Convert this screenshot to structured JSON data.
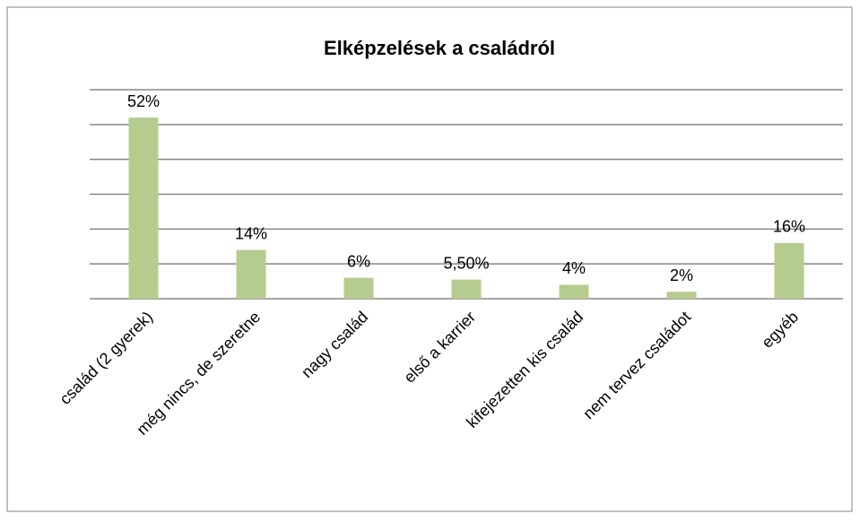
{
  "chart_data": {
    "type": "bar",
    "title": "Elképzelések a családról",
    "categories": [
      "család (2 gyerek)",
      "még nincs, de szeretne",
      "nagy család",
      "első a karrier",
      "kifejezetten kis család",
      "nem tervez családot",
      "egyéb"
    ],
    "values": [
      52,
      14,
      6,
      5.5,
      4,
      2,
      16
    ],
    "value_labels": [
      "52%",
      "14%",
      "6%",
      "5,50%",
      "4%",
      "2%",
      "16%"
    ],
    "color": "#b5cc8e",
    "ylim": [
      0,
      60
    ],
    "yticks": [
      0,
      10,
      20,
      30,
      40,
      50,
      60
    ],
    "grid": true
  }
}
